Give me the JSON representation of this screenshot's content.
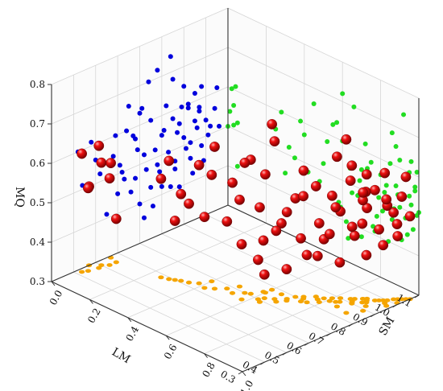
{
  "chart_data": {
    "type": "scatter3d",
    "title": "",
    "axes": {
      "x": {
        "label": "LM",
        "range": [
          0.3,
          1.1
        ],
        "ticks": [
          "0.3",
          "0.4",
          "0.5",
          "0.6",
          "0.7",
          "0.8",
          "0.9",
          "1.0",
          "1.1"
        ]
      },
      "y": {
        "label": "SM",
        "range": [
          0.0,
          1.0
        ],
        "ticks": [
          "0.0",
          "0.2",
          "0.4",
          "0.6",
          "0.8",
          "1.0"
        ]
      },
      "z": {
        "label": "MQ",
        "range": [
          0.3,
          0.8
        ],
        "ticks": [
          "0.3",
          "0.4",
          "0.5",
          "0.6",
          "0.7",
          "0.8"
        ]
      }
    },
    "grid": true,
    "legend": "none",
    "colors": {
      "points": "#cc0000",
      "projection_lm_mq_wall": "#0000dd",
      "projection_sm_mq_wall": "#22dd22",
      "projection_floor": "#f5a500"
    },
    "series": [
      {
        "type": "scatter",
        "style": "spheres",
        "points": [
          {
            "x": 0.42,
            "y": 0.02,
            "z": 0.6
          },
          {
            "x": 0.47,
            "y": 0.0,
            "z": 0.5
          },
          {
            "x": 0.5,
            "y": 0.03,
            "z": 0.56
          },
          {
            "x": 0.52,
            "y": 0.05,
            "z": 0.52
          },
          {
            "x": 0.56,
            "y": 0.01,
            "z": 0.54
          },
          {
            "x": 0.55,
            "y": 0.05,
            "z": 0.41
          },
          {
            "x": 0.48,
            "y": 0.04,
            "z": 0.61
          },
          {
            "x": 0.44,
            "y": 0.03,
            "z": 0.51
          },
          {
            "x": 0.65,
            "y": 0.45,
            "z": 0.66
          },
          {
            "x": 0.7,
            "y": 0.55,
            "z": 0.63
          },
          {
            "x": 0.68,
            "y": 0.4,
            "z": 0.57
          },
          {
            "x": 0.75,
            "y": 0.6,
            "z": 0.6
          },
          {
            "x": 0.72,
            "y": 0.5,
            "z": 0.52
          },
          {
            "x": 0.8,
            "y": 0.7,
            "z": 0.55
          },
          {
            "x": 0.78,
            "y": 0.65,
            "z": 0.48
          },
          {
            "x": 0.62,
            "y": 0.35,
            "z": 0.5
          },
          {
            "x": 0.85,
            "y": 0.75,
            "z": 0.58
          },
          {
            "x": 0.82,
            "y": 0.72,
            "z": 0.62
          },
          {
            "x": 0.88,
            "y": 0.8,
            "z": 0.56
          },
          {
            "x": 0.9,
            "y": 0.82,
            "z": 0.52
          },
          {
            "x": 0.86,
            "y": 0.78,
            "z": 0.45
          },
          {
            "x": 0.92,
            "y": 0.85,
            "z": 0.6
          },
          {
            "x": 0.95,
            "y": 0.88,
            "z": 0.55
          },
          {
            "x": 0.93,
            "y": 0.9,
            "z": 0.5
          },
          {
            "x": 0.97,
            "y": 0.92,
            "z": 0.58
          },
          {
            "x": 1.0,
            "y": 0.95,
            "z": 0.54
          },
          {
            "x": 0.98,
            "y": 0.93,
            "z": 0.48
          },
          {
            "x": 1.02,
            "y": 0.96,
            "z": 0.52
          },
          {
            "x": 0.95,
            "y": 0.9,
            "z": 0.62
          },
          {
            "x": 0.9,
            "y": 0.88,
            "z": 0.65
          },
          {
            "x": 0.85,
            "y": 0.86,
            "z": 0.68
          },
          {
            "x": 1.04,
            "y": 0.98,
            "z": 0.56
          },
          {
            "x": 0.99,
            "y": 0.94,
            "z": 0.44
          },
          {
            "x": 0.94,
            "y": 0.91,
            "z": 0.42
          },
          {
            "x": 0.88,
            "y": 0.84,
            "z": 0.4
          },
          {
            "x": 0.8,
            "y": 0.76,
            "z": 0.42
          },
          {
            "x": 0.76,
            "y": 0.7,
            "z": 0.38
          },
          {
            "x": 0.7,
            "y": 0.62,
            "z": 0.4
          },
          {
            "x": 0.66,
            "y": 0.58,
            "z": 0.44
          },
          {
            "x": 0.6,
            "y": 0.3,
            "z": 0.45
          },
          {
            "x": 0.58,
            "y": 0.25,
            "z": 0.55
          },
          {
            "x": 0.64,
            "y": 0.38,
            "z": 0.6
          },
          {
            "x": 0.74,
            "y": 0.66,
            "z": 0.7
          },
          {
            "x": 0.84,
            "y": 0.92,
            "z": 0.74
          },
          {
            "x": 0.78,
            "y": 0.6,
            "z": 0.72
          },
          {
            "x": 1.05,
            "y": 0.99,
            "z": 0.61
          },
          {
            "x": 1.03,
            "y": 0.97,
            "z": 0.46
          },
          {
            "x": 0.96,
            "y": 0.89,
            "z": 0.53
          },
          {
            "x": 0.91,
            "y": 0.87,
            "z": 0.49
          },
          {
            "x": 0.87,
            "y": 0.83,
            "z": 0.54
          },
          {
            "x": 0.83,
            "y": 0.79,
            "z": 0.5
          },
          {
            "x": 0.79,
            "y": 0.74,
            "z": 0.46
          },
          {
            "x": 0.73,
            "y": 0.68,
            "z": 0.48
          },
          {
            "x": 0.69,
            "y": 0.64,
            "z": 0.54
          },
          {
            "x": 0.67,
            "y": 0.52,
            "z": 0.58
          },
          {
            "x": 0.71,
            "y": 0.57,
            "z": 0.64
          },
          {
            "x": 0.89,
            "y": 0.95,
            "z": 0.6
          },
          {
            "x": 0.97,
            "y": 0.98,
            "z": 0.57
          },
          {
            "x": 1.01,
            "y": 0.99,
            "z": 0.5
          },
          {
            "x": 0.93,
            "y": 0.86,
            "z": 0.46
          },
          {
            "x": 0.81,
            "y": 0.73,
            "z": 0.56
          },
          {
            "x": 0.77,
            "y": 0.69,
            "z": 0.52
          },
          {
            "x": 0.63,
            "y": 0.42,
            "z": 0.48
          },
          {
            "x": 0.61,
            "y": 0.32,
            "z": 0.52
          },
          {
            "x": 0.59,
            "y": 0.28,
            "z": 0.6
          },
          {
            "x": 0.86,
            "y": 0.81,
            "z": 0.47
          },
          {
            "x": 0.92,
            "y": 0.93,
            "z": 0.59
          },
          {
            "x": 0.98,
            "y": 0.96,
            "z": 0.63
          },
          {
            "x": 1.06,
            "y": 1.0,
            "z": 0.51
          },
          {
            "x": 0.84,
            "y": 0.77,
            "z": 0.41
          },
          {
            "x": 0.72,
            "y": 0.63,
            "z": 0.36
          },
          {
            "x": 0.75,
            "y": 0.59,
            "z": 0.43
          },
          {
            "x": 0.68,
            "y": 0.48,
            "z": 0.47
          }
        ]
      }
    ]
  }
}
